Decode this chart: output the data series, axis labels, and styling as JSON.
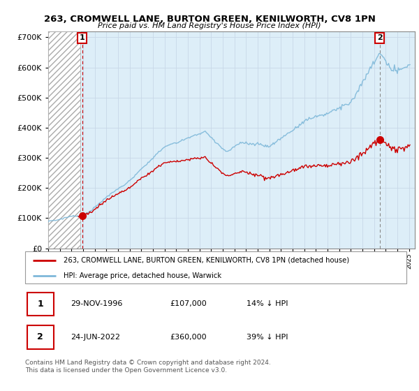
{
  "title_line1": "263, CROMWELL LANE, BURTON GREEN, KENILWORTH, CV8 1PN",
  "title_line2": "Price paid vs. HM Land Registry's House Price Index (HPI)",
  "sale1_date": "29-NOV-1996",
  "sale1_price": 107000,
  "sale1_label": "1",
  "sale1_year": 1996.91,
  "sale2_date": "24-JUN-2022",
  "sale2_price": 360000,
  "sale2_label": "2",
  "sale2_year": 2022.48,
  "hpi_color": "#7eb8d9",
  "price_color": "#cc0000",
  "marker_color": "#cc0000",
  "grid_color": "#c8d8e8",
  "bg_color": "#ddeef8",
  "legend_label1": "263, CROMWELL LANE, BURTON GREEN, KENILWORTH, CV8 1PN (detached house)",
  "legend_label2": "HPI: Average price, detached house, Warwick",
  "footer1": "Contains HM Land Registry data © Crown copyright and database right 2024.",
  "footer2": "This data is licensed under the Open Government Licence v3.0.",
  "table_row1": [
    "1",
    "29-NOV-1996",
    "£107,000",
    "14% ↓ HPI"
  ],
  "table_row2": [
    "2",
    "24-JUN-2022",
    "£360,000",
    "39% ↓ HPI"
  ],
  "xmin": 1994.0,
  "xmax": 2025.5,
  "ymin": 0,
  "ymax": 720000,
  "hatch_end": 1996.75
}
